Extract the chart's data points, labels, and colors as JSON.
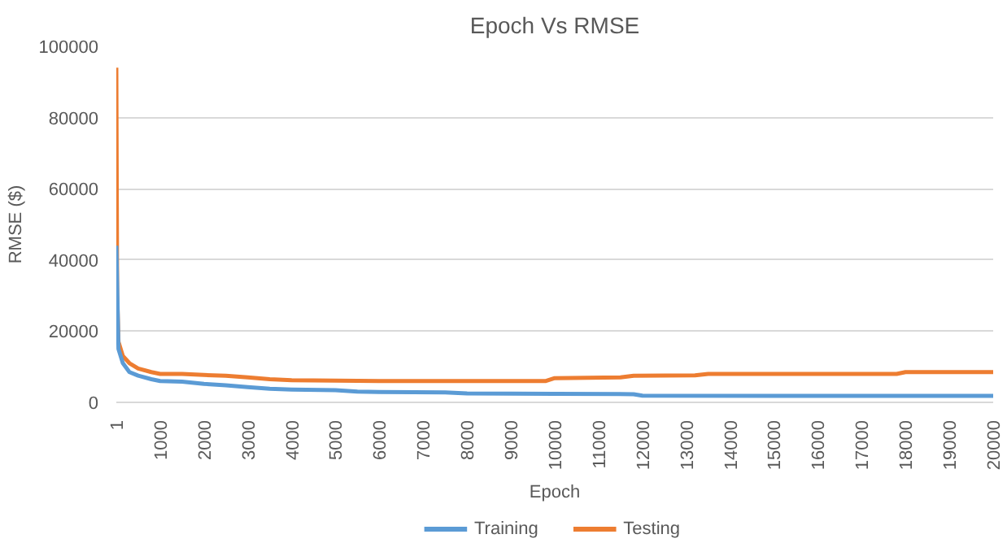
{
  "chart_data": {
    "type": "line",
    "title": "Epoch Vs RMSE",
    "xlabel": "Epoch",
    "ylabel": "RMSE ($)",
    "xlim": [
      1,
      20000
    ],
    "xticks": [
      1,
      1000,
      2000,
      3000,
      4000,
      5000,
      6000,
      7000,
      8000,
      9000,
      10000,
      11000,
      12000,
      13000,
      14000,
      15000,
      16000,
      17000,
      18000,
      19000,
      20000
    ],
    "ylim": [
      0,
      100000
    ],
    "yticks": [
      0,
      20000,
      40000,
      60000,
      80000,
      100000
    ],
    "grid": "y",
    "legend": "bottom",
    "marker": "none",
    "line_style": "solid",
    "series": [
      {
        "name": "Training",
        "color": "#5b9bd5",
        "x": [
          1,
          50,
          150,
          300,
          500,
          800,
          1000,
          1500,
          2000,
          2500,
          3000,
          3500,
          4000,
          5000,
          5500,
          6000,
          7500,
          8000,
          10000,
          11800,
          12000,
          15000,
          20000
        ],
        "values": [
          44000,
          15000,
          11000,
          8500,
          7500,
          6500,
          6000,
          5800,
          5200,
          4800,
          4300,
          3800,
          3600,
          3400,
          3000,
          2900,
          2800,
          2500,
          2400,
          2300,
          1900,
          1800,
          1800
        ]
      },
      {
        "name": "Testing",
        "color": "#ed7d31",
        "x": [
          1,
          20,
          50,
          150,
          300,
          500,
          800,
          1000,
          1500,
          2000,
          2500,
          3000,
          3500,
          4000,
          6000,
          9800,
          10000,
          11500,
          11800,
          13200,
          13500,
          17800,
          18000,
          20000
        ],
        "values": [
          94000,
          30000,
          17000,
          13000,
          11000,
          9500,
          8500,
          8000,
          8000,
          7700,
          7500,
          7000,
          6500,
          6200,
          6000,
          6000,
          6800,
          7000,
          7500,
          7600,
          8000,
          8000,
          8500,
          8500
        ]
      }
    ]
  }
}
